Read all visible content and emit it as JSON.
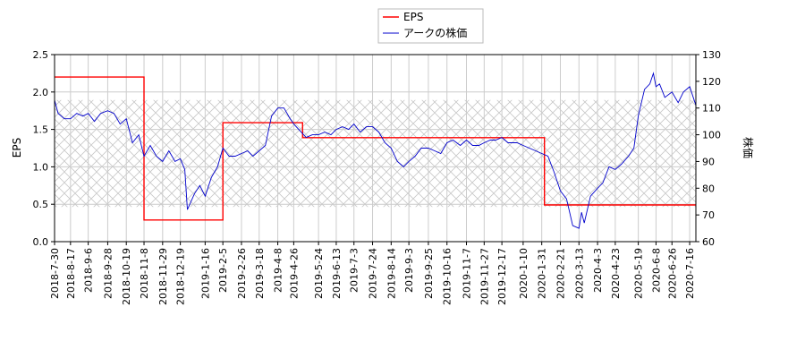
{
  "chart_data": {
    "type": "line",
    "grid": true,
    "legend_position": "top-center",
    "xlabel": "",
    "ylabel_left": "EPS",
    "ylabel_right": "株価",
    "ylim_left": [
      0.0,
      2.5
    ],
    "ylim_right": [
      60,
      130
    ],
    "xlim": [
      "2018-07-30",
      "2020-07-23"
    ],
    "shaded_band_right": [
      73,
      113
    ],
    "yticks_left": [
      "0.0",
      "0.5",
      "1.0",
      "1.5",
      "2.0",
      "2.5"
    ],
    "yticks_right": [
      "60",
      "70",
      "80",
      "90",
      "100",
      "110",
      "120",
      "130"
    ],
    "xticks": [
      "2018-7-30",
      "2018-8-17",
      "2018-9-6",
      "2018-9-28",
      "2018-10-19",
      "2018-11-8",
      "2018-11-29",
      "2018-12-19",
      "2019-1-16",
      "2019-2-5",
      "2019-2-26",
      "2019-3-18",
      "2019-4-8",
      "2019-4-26",
      "2019-5-24",
      "2019-6-13",
      "2019-7-3",
      "2019-7-24",
      "2019-8-14",
      "2019-9-3",
      "2019-9-25",
      "2019-10-16",
      "2019-11-7",
      "2019-11-27",
      "2019-12-17",
      "2020-1-10",
      "2020-1-31",
      "2020-2-21",
      "2020-3-13",
      "2020-4-3",
      "2020-4-23",
      "2020-5-19",
      "2020-6-8",
      "2020-6-26",
      "2020-7-16"
    ],
    "series": [
      {
        "name": "EPS",
        "color": "#ff0000",
        "axis": "left",
        "step": true,
        "x": [
          "2018-07-30",
          "2018-11-08",
          "2019-02-05",
          "2019-05-06",
          "2020-02-03",
          "2020-07-23"
        ],
        "values": [
          2.2,
          0.29,
          1.59,
          1.39,
          0.49,
          0.49
        ]
      },
      {
        "name": "アークの株価",
        "color": "#0000cc",
        "axis": "right",
        "x": [
          "2018-07-30",
          "2018-08-03",
          "2018-08-10",
          "2018-08-17",
          "2018-08-24",
          "2018-08-31",
          "2018-09-06",
          "2018-09-13",
          "2018-09-20",
          "2018-09-28",
          "2018-10-05",
          "2018-10-12",
          "2018-10-19",
          "2018-10-26",
          "2018-11-02",
          "2018-11-08",
          "2018-11-15",
          "2018-11-22",
          "2018-11-29",
          "2018-12-06",
          "2018-12-13",
          "2018-12-19",
          "2018-12-24",
          "2018-12-27",
          "2019-01-04",
          "2019-01-10",
          "2019-01-16",
          "2019-01-23",
          "2019-01-30",
          "2019-02-05",
          "2019-02-12",
          "2019-02-19",
          "2019-02-26",
          "2019-03-05",
          "2019-03-11",
          "2019-03-18",
          "2019-03-25",
          "2019-04-01",
          "2019-04-08",
          "2019-04-15",
          "2019-04-22",
          "2019-04-26",
          "2019-05-10",
          "2019-05-17",
          "2019-05-24",
          "2019-05-31",
          "2019-06-07",
          "2019-06-13",
          "2019-06-20",
          "2019-06-27",
          "2019-07-03",
          "2019-07-10",
          "2019-07-17",
          "2019-07-24",
          "2019-07-31",
          "2019-08-07",
          "2019-08-14",
          "2019-08-21",
          "2019-08-28",
          "2019-09-03",
          "2019-09-10",
          "2019-09-17",
          "2019-09-25",
          "2019-10-02",
          "2019-10-09",
          "2019-10-16",
          "2019-10-23",
          "2019-10-31",
          "2019-11-07",
          "2019-11-14",
          "2019-11-21",
          "2019-11-27",
          "2019-12-04",
          "2019-12-10",
          "2019-12-17",
          "2019-12-24",
          "2020-01-03",
          "2020-01-10",
          "2020-01-17",
          "2020-01-24",
          "2020-01-31",
          "2020-02-07",
          "2020-02-14",
          "2020-02-21",
          "2020-02-28",
          "2020-03-06",
          "2020-03-13",
          "2020-03-16",
          "2020-03-19",
          "2020-03-26",
          "2020-04-03",
          "2020-04-09",
          "2020-04-16",
          "2020-04-23",
          "2020-04-30",
          "2020-05-08",
          "2020-05-14",
          "2020-05-19",
          "2020-05-26",
          "2020-06-01",
          "2020-06-05",
          "2020-06-08",
          "2020-06-12",
          "2020-06-18",
          "2020-06-26",
          "2020-07-03",
          "2020-07-09",
          "2020-07-16",
          "2020-07-23"
        ],
        "values": [
          113,
          108,
          106,
          106,
          108,
          107,
          108,
          105,
          108,
          109,
          108,
          104,
          106,
          97,
          100,
          92,
          96,
          92,
          90,
          94,
          90,
          91,
          87,
          72,
          78,
          81,
          77,
          84,
          88,
          95,
          92,
          92,
          93,
          94,
          92,
          94,
          96,
          107,
          110,
          110,
          106,
          104,
          99,
          100,
          100,
          101,
          100,
          102,
          103,
          102,
          104,
          101,
          103,
          103,
          101,
          97,
          95,
          90,
          88,
          90,
          92,
          95,
          95,
          94,
          93,
          97,
          98,
          96,
          98,
          96,
          96,
          97,
          98,
          98,
          99,
          97,
          97,
          96,
          95,
          94,
          93,
          92,
          86,
          79,
          76,
          66,
          65,
          71,
          67,
          77,
          80,
          82,
          88,
          87,
          89,
          92,
          95,
          107,
          117,
          119,
          123,
          118,
          119,
          114,
          116,
          112,
          116,
          118,
          111
        ]
      }
    ]
  }
}
